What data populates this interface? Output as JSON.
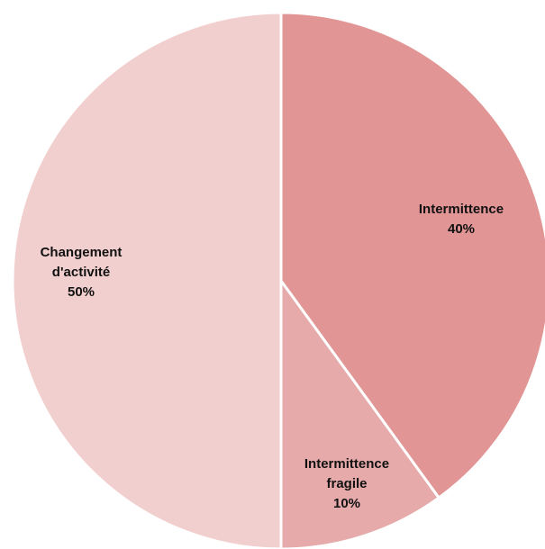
{
  "chart_data": {
    "type": "pie",
    "title": "",
    "categories": [
      "Intermittence",
      "Intermittence fragile",
      "Changement d'activité"
    ],
    "values": [
      40,
      10,
      50
    ],
    "value_labels": [
      "40%",
      "10%",
      "50%"
    ],
    "label_lines": [
      [
        "Intermittence",
        "40%"
      ],
      [
        "Intermittence",
        "fragile",
        "10%"
      ],
      [
        "Changement",
        "d'activité",
        "50%"
      ]
    ],
    "colors": [
      "#e29595",
      "#e6aaaa",
      "#f2cfcf"
    ],
    "start": "12 o'clock",
    "direction": "clockwise",
    "legend": "none"
  }
}
